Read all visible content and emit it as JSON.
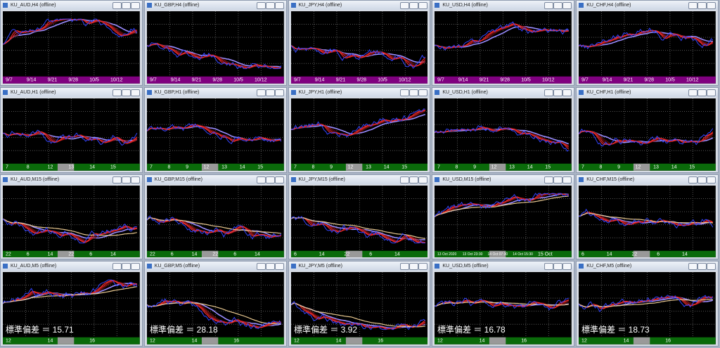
{
  "windows": [
    {
      "title": "KU_AUD,H4 (offline)",
      "x_labels": [
        "9/7",
        "9/14",
        "9/21",
        "9/28",
        "10/5",
        "10/12"
      ]
    },
    {
      "title": "KU_GBP,H4 (offline)",
      "x_labels": [
        "9/7",
        "9/14",
        "9/21",
        "9/28",
        "10/5",
        "10/12"
      ]
    },
    {
      "title": "KU_JPY,H4 (offline)",
      "x_labels": [
        "9/7",
        "9/14",
        "9/21",
        "9/28",
        "10/5",
        "10/12"
      ]
    },
    {
      "title": "KU_USD,H4 (offline)",
      "x_labels": [
        "9/7",
        "9/14",
        "9/21",
        "9/28",
        "10/5",
        "10/12"
      ]
    },
    {
      "title": "KU_CHF,H4 (offline)",
      "x_labels": [
        "9/7",
        "9/14",
        "9/21",
        "9/28",
        "10/5",
        "10/12"
      ]
    },
    {
      "title": "KU_AUD,H1 (offline)",
      "x_labels": [
        "7",
        "8",
        "12",
        "13",
        "14",
        "15"
      ]
    },
    {
      "title": "KU_GBP,H1 (offline)",
      "x_labels": [
        "7",
        "8",
        "9",
        "12",
        "13",
        "14",
        "15"
      ]
    },
    {
      "title": "KU_JPY,H1 (offline)",
      "x_labels": [
        "7",
        "8",
        "9",
        "12",
        "13",
        "14",
        "15"
      ]
    },
    {
      "title": "KU_USD,H1 (offline)",
      "x_labels": [
        "7",
        "8",
        "9",
        "12",
        "13",
        "14",
        "15"
      ]
    },
    {
      "title": "KU_CHF,H1 (offline)",
      "x_labels": [
        "7",
        "8",
        "9",
        "12",
        "13",
        "14",
        "15"
      ]
    },
    {
      "title": "KU_AUD,M15 (offline)",
      "x_labels": [
        "22",
        "6",
        "14",
        "22",
        "6",
        "14"
      ]
    },
    {
      "title": "KU_GBP,M15 (offline)",
      "x_labels": [
        "22",
        "6",
        "14",
        "22",
        "6",
        "14"
      ]
    },
    {
      "title": "KU_JPY,M15 (offline)",
      "x_labels": [
        "6",
        "14",
        "22",
        "6",
        "14"
      ]
    },
    {
      "title": "KU_USD,M15 (offline)",
      "x_labels": [
        "13 Oct 2020",
        "13 Oct 23:30",
        "14 Oct 07:30",
        "14 Oct 15:30",
        "15 Oct"
      ]
    },
    {
      "title": "KU_CHF,M15 (offline)",
      "x_labels": [
        "6",
        "14",
        "22",
        "6",
        "14"
      ]
    },
    {
      "title": "KU_AUD,M5 (offline)",
      "x_labels": [
        "12",
        "14",
        "16"
      ],
      "stat": "標準偏差 ＝ 15.71"
    },
    {
      "title": "KU_GBP,M5 (offline)",
      "x_labels": [
        "12",
        "14",
        "16"
      ],
      "stat": "標準偏差 ＝ 28.18"
    },
    {
      "title": "KU_JPY,M5 (offline)",
      "x_labels": [
        "12",
        "14",
        "16"
      ],
      "stat": "標準偏差 ＝ 3.92"
    },
    {
      "title": "KU_USD,M5 (offline)",
      "x_labels": [
        "12",
        "14",
        "16"
      ],
      "stat": "標準偏差 ＝ 16.78"
    },
    {
      "title": "KU_CHF,M5 (offline)",
      "x_labels": [
        "12",
        "14",
        "16"
      ],
      "stat": "標準偏差 ＝ 18.73"
    }
  ]
}
